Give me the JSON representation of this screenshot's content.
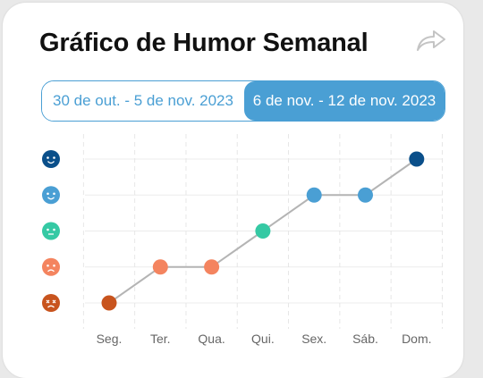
{
  "title": "Gráfico de Humor Semanal",
  "share_icon": "share-arrow-icon",
  "range_selector": {
    "options": [
      {
        "label": "30 de out. - 5 de nov. 2023",
        "selected": false
      },
      {
        "label": "6 de nov. - 12 de nov. 2023",
        "selected": true
      }
    ],
    "accent_color": "#4a9fd4"
  },
  "chart_data": {
    "type": "line",
    "categories": [
      "Seg.",
      "Ter.",
      "Qua.",
      "Qui.",
      "Sex.",
      "Sáb.",
      "Dom."
    ],
    "values": [
      1,
      2,
      2,
      3,
      4,
      4,
      5
    ],
    "ylim": [
      1,
      5
    ],
    "y_levels": [
      {
        "value": 5,
        "icon": "very-happy-face-icon",
        "color": "#0a4f8a"
      },
      {
        "value": 4,
        "icon": "happy-face-icon",
        "color": "#4a9fd4"
      },
      {
        "value": 3,
        "icon": "neutral-face-icon",
        "color": "#35c9a4"
      },
      {
        "value": 2,
        "icon": "sad-face-icon",
        "color": "#f4845f"
      },
      {
        "value": 1,
        "icon": "very-sad-face-icon",
        "color": "#c8541e"
      }
    ],
    "line_color": "#b4b4b4",
    "grid": true
  }
}
